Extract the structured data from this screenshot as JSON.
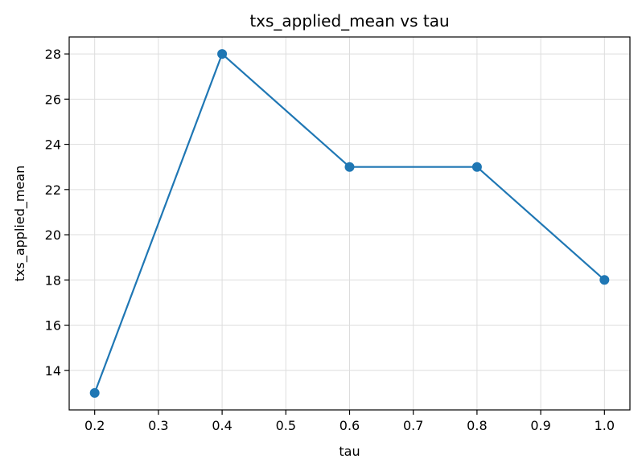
{
  "chart_data": {
    "type": "line",
    "title": "txs_applied_mean vs tau",
    "xlabel": "tau",
    "ylabel": "txs_applied_mean",
    "x": [
      0.2,
      0.4,
      0.6,
      0.8,
      1.0
    ],
    "series": [
      {
        "values": [
          13,
          28,
          23,
          23,
          18
        ],
        "color": "#1f77b4",
        "marker": "circle"
      }
    ],
    "xlim": [
      0.16,
      1.04
    ],
    "ylim": [
      12.25,
      28.75
    ],
    "xticks": [
      "0.2",
      "0.3",
      "0.4",
      "0.5",
      "0.6",
      "0.7",
      "0.8",
      "0.9",
      "1.0"
    ],
    "yticks": [
      "14",
      "16",
      "18",
      "20",
      "22",
      "24",
      "26",
      "28"
    ],
    "grid": true,
    "legend": "none"
  }
}
